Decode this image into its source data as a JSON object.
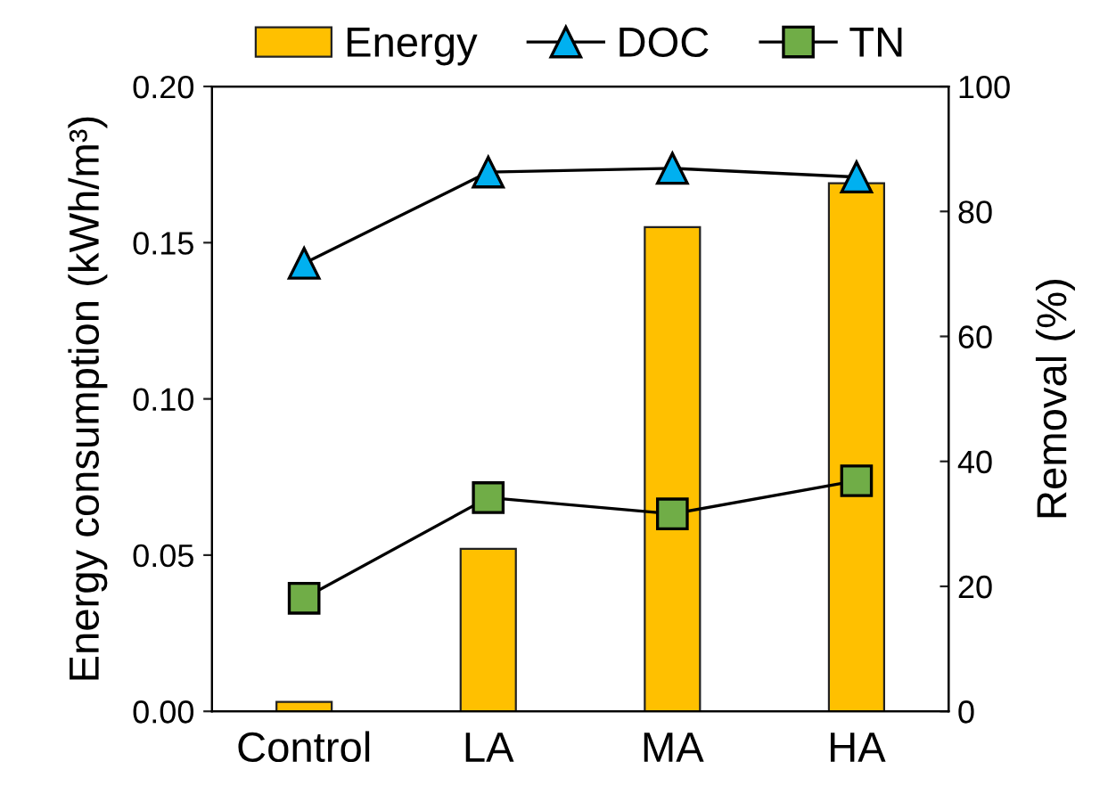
{
  "chart_data": {
    "type": "bar",
    "categories": [
      "Control",
      "LA",
      "MA",
      "HA"
    ],
    "ylabel": "Energy consumption (kWh/m³)",
    "y2label": "Removal (%)",
    "ylim": [
      0,
      0.2
    ],
    "yticks": [
      {
        "value": 0,
        "label": "0.00"
      },
      {
        "value": 0.05,
        "label": "0.05"
      },
      {
        "value": 0.1,
        "label": "0.10"
      },
      {
        "value": 0.15,
        "label": "0.15"
      },
      {
        "value": 0.2,
        "label": "0.20"
      }
    ],
    "y2lim": [
      0,
      100
    ],
    "y2ticks": [
      0,
      20,
      40,
      60,
      80,
      100
    ],
    "grid": false,
    "legend": "top",
    "series": [
      {
        "name": "Energy",
        "color": "#ffc000",
        "values": [
          0.003,
          0.052,
          0.155,
          0.169
        ]
      },
      {
        "name": "DOC",
        "type": "line",
        "axis": "y2",
        "marker": "triangle",
        "color": "#00b0f0",
        "values": [
          71.7,
          86.3,
          86.9,
          85.5
        ]
      },
      {
        "name": "TN",
        "type": "line",
        "axis": "y2",
        "marker": "square",
        "color": "#70ad47",
        "values": [
          18.1,
          34.2,
          31.6,
          36.9
        ]
      }
    ]
  }
}
